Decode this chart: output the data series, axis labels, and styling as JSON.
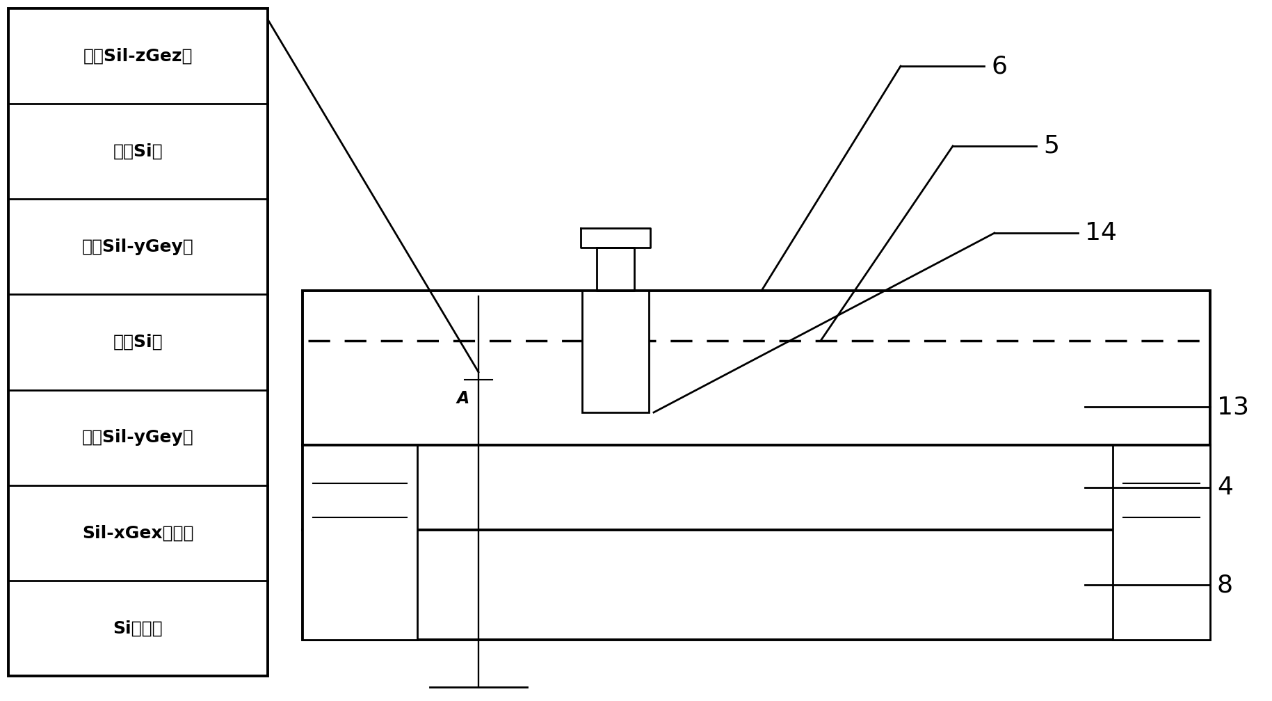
{
  "fig_width": 18.29,
  "fig_height": 10.08,
  "bg_color": "#ffffff",
  "labels": [
    "应变Sil-zGez层",
    "应变Si层",
    "弛豮Sil-yGey层",
    "应变Si层",
    "弛豮Sil-yGey层",
    "Sil-xGex渐变层",
    "Si腥底层"
  ],
  "lw": 2.0,
  "lw_thick": 2.8,
  "lw_thin": 1.5,
  "black": "#000000"
}
